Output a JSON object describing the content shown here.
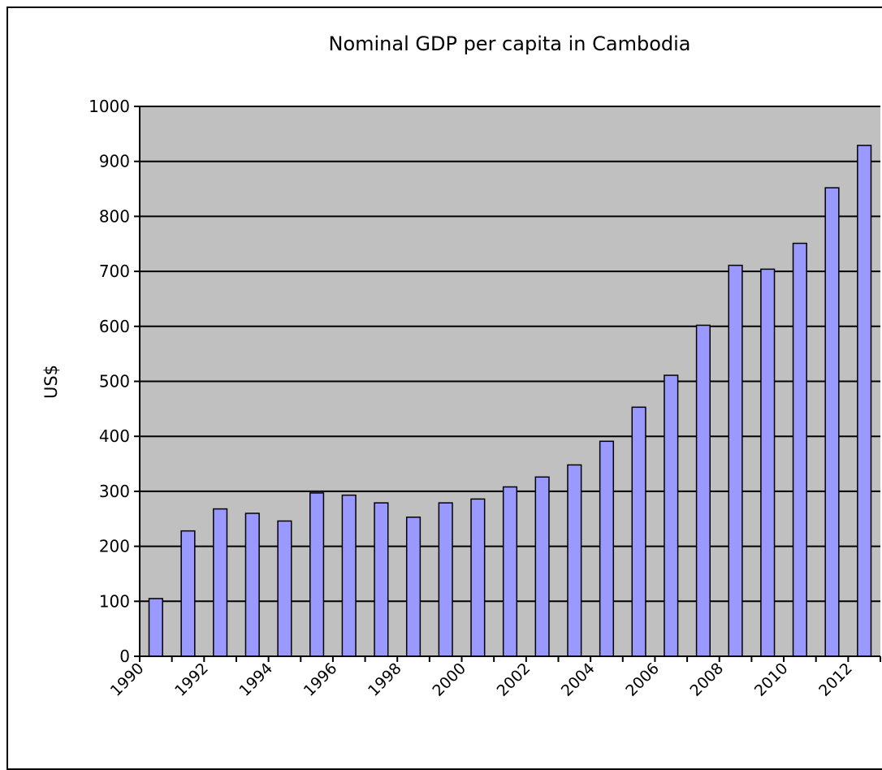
{
  "chart_data": {
    "type": "bar",
    "title": "Nominal GDP per capita in Cambodia",
    "xlabel": "",
    "ylabel": "US$",
    "categories": [
      "1990",
      "1991",
      "1992",
      "1993",
      "1994",
      "1995",
      "1996",
      "1997",
      "1998",
      "1999",
      "2000",
      "2001",
      "2002",
      "2003",
      "2004",
      "2005",
      "2006",
      "2007",
      "2008",
      "2009",
      "2010",
      "2011",
      "2012"
    ],
    "x_tick_labels": [
      "1990",
      "1992",
      "1994",
      "1996",
      "1998",
      "2000",
      "2002",
      "2004",
      "2006",
      "2008",
      "2010",
      "2012"
    ],
    "values": [
      105,
      228,
      268,
      260,
      246,
      297,
      293,
      279,
      253,
      279,
      286,
      308,
      326,
      348,
      391,
      453,
      511,
      602,
      711,
      704,
      751,
      852,
      929
    ],
    "ylim": [
      0,
      1000
    ],
    "yticks": [
      0,
      100,
      200,
      300,
      400,
      500,
      600,
      700,
      800,
      900,
      1000
    ],
    "grid": true,
    "colors": {
      "bar_fill": "#9999ff",
      "plot_background": "#c0c0c0",
      "axis": "#000000"
    }
  }
}
